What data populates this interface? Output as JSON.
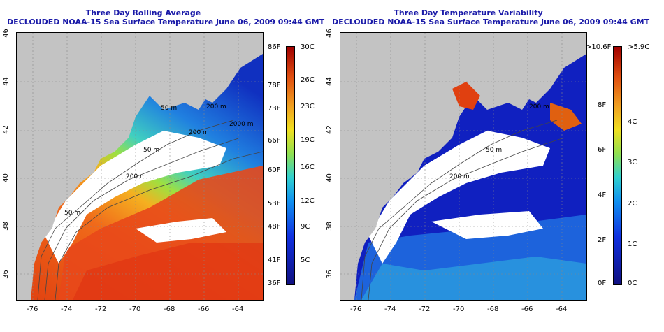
{
  "left_panel": {
    "title_line1": "Three Day Rolling Average",
    "title_line2": "DECLOUDED NOAA-15 Sea Surface Temperature June 06, 2009 09:44 GMT",
    "colorbar_f": [
      "86F",
      "78F",
      "73F",
      "66F",
      "60F",
      "53F",
      "48F",
      "41F",
      "36F"
    ],
    "colorbar_c": [
      "30C",
      "26C",
      "23C",
      "19C",
      "16C",
      "12C",
      "9C",
      "5C"
    ],
    "contours": [
      "200 m",
      "2000 m",
      "200 m",
      "200 m",
      "50 m",
      "50 m",
      "50 m"
    ]
  },
  "right_panel": {
    "title_line1": "Three Day Temperature Variability",
    "title_line2": "DECLOUDED NOAA-15 Sea Surface Temperature June 06, 2009 09:44 GMT",
    "colorbar_f": [
      ">10.6F",
      "8F",
      "6F",
      "4F",
      "2F",
      "0F"
    ],
    "colorbar_c": [
      ">5.9C",
      "4C",
      "3C",
      "2C",
      "1C",
      "0C"
    ],
    "contours": [
      "200 m",
      "200 m",
      "50 m"
    ]
  },
  "axes": {
    "lon_ticks": [
      "-76",
      "-74",
      "-72",
      "-70",
      "-68",
      "-66",
      "-64"
    ],
    "lat_ticks": [
      "46",
      "44",
      "42",
      "40",
      "38",
      "36"
    ]
  },
  "colors": {
    "land": "#c3c3c3",
    "cloud": "#ffffff",
    "title": "#1a1aa8"
  }
}
